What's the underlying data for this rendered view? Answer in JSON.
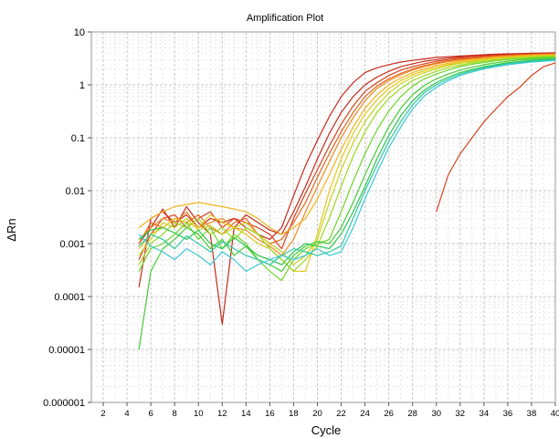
{
  "chart_data": {
    "type": "line",
    "title": "Amplification Plot",
    "xlabel": "Cycle",
    "ylabel": "ΔRn",
    "xlim": [
      1,
      40
    ],
    "ylim": [
      1e-06,
      10
    ],
    "yscale": "log",
    "grid": true,
    "legend": "none",
    "xticks": [
      2,
      4,
      6,
      8,
      10,
      12,
      14,
      16,
      18,
      20,
      22,
      24,
      26,
      28,
      30,
      32,
      34,
      36,
      38,
      40
    ],
    "yticks": [
      {
        "value": 10,
        "label": "10"
      },
      {
        "value": 1,
        "label": "1"
      },
      {
        "value": 0.1,
        "label": "0.1"
      },
      {
        "value": 0.01,
        "label": "0.01"
      },
      {
        "value": 0.001,
        "label": "0.001"
      },
      {
        "value": 0.0001,
        "label": "0.0001"
      },
      {
        "value": 1e-05,
        "label": "0.00001"
      },
      {
        "value": 1e-06,
        "label": "0.000001"
      }
    ],
    "colors": [
      "#c62a1a",
      "#d8401c",
      "#e8641e",
      "#f08a20",
      "#f2b41e",
      "#e6c81c",
      "#c8d41c",
      "#9ed81e",
      "#6fd628",
      "#44cc36",
      "#2cc64c",
      "#30c8a4",
      "#3cc8d8"
    ],
    "series": [
      {
        "color": "#c62a1a",
        "x": [
          5,
          6,
          7,
          8,
          9,
          10,
          11,
          12,
          13,
          14,
          15,
          16,
          17,
          18,
          19,
          20,
          21,
          22,
          23,
          24,
          25,
          26,
          27,
          28,
          29,
          30,
          31,
          32,
          33,
          34,
          35,
          36,
          37,
          38,
          39,
          40
        ],
        "y": [
          0.00015,
          0.003,
          0.004,
          0.0025,
          0.0035,
          0.002,
          0.003,
          0.0025,
          0.003,
          0.002,
          0.0015,
          0.0012,
          0.002,
          0.008,
          0.03,
          0.09,
          0.25,
          0.6,
          1.1,
          1.7,
          2.1,
          2.4,
          2.7,
          2.9,
          3.1,
          3.3,
          3.4,
          3.5,
          3.6,
          3.7,
          3.8,
          3.85,
          3.9,
          3.95,
          4.0,
          4.05
        ]
      },
      {
        "color": "#c62a1a",
        "x": [
          5,
          6,
          7,
          8,
          9,
          10,
          11,
          12,
          13,
          14,
          15,
          16,
          17,
          18,
          19,
          20,
          21,
          22,
          23,
          24,
          25,
          26,
          27,
          28,
          29,
          30,
          31,
          32,
          33,
          34,
          35,
          36,
          37,
          38,
          39,
          40
        ],
        "y": [
          0.001,
          0.002,
          0.0045,
          0.002,
          0.005,
          0.0025,
          0.0015,
          3e-05,
          0.002,
          0.0035,
          0.0025,
          0.0018,
          0.0015,
          0.004,
          0.012,
          0.04,
          0.12,
          0.3,
          0.6,
          1.0,
          1.4,
          1.8,
          2.2,
          2.5,
          2.8,
          3.0,
          3.2,
          3.35,
          3.5,
          3.6,
          3.7,
          3.8,
          3.85,
          3.9,
          3.95,
          4.0
        ]
      },
      {
        "color": "#d8401c",
        "x": [
          5,
          6,
          7,
          8,
          9,
          10,
          11,
          12,
          13,
          14,
          15,
          16,
          17,
          18,
          19,
          20,
          21,
          22,
          23,
          24,
          25,
          26,
          27,
          28,
          29,
          30,
          31,
          32,
          33,
          34,
          35,
          36,
          37,
          38,
          39,
          40
        ],
        "y": [
          0.0005,
          0.0015,
          0.003,
          0.0035,
          0.002,
          0.003,
          0.004,
          0.002,
          0.003,
          0.0025,
          0.002,
          0.0015,
          0.0008,
          0.003,
          0.009,
          0.025,
          0.07,
          0.18,
          0.4,
          0.75,
          1.1,
          1.5,
          1.9,
          2.2,
          2.5,
          2.8,
          3.0,
          3.2,
          3.3,
          3.45,
          3.55,
          3.65,
          3.75,
          3.8,
          3.85,
          3.9
        ]
      },
      {
        "color": "#e8641e",
        "x": [
          5,
          6,
          7,
          8,
          9,
          10,
          11,
          12,
          13,
          14,
          15,
          16,
          17,
          18,
          19,
          20,
          21,
          22,
          23,
          24,
          25,
          26,
          27,
          28,
          29,
          30,
          31,
          32,
          33,
          34,
          35,
          36,
          37,
          38,
          39,
          40
        ],
        "y": [
          0.001,
          0.0025,
          0.002,
          0.003,
          0.0025,
          0.0035,
          0.002,
          0.0015,
          0.0025,
          0.003,
          0.0015,
          0.001,
          0.0012,
          0.0025,
          0.006,
          0.018,
          0.05,
          0.13,
          0.3,
          0.6,
          0.95,
          1.3,
          1.65,
          2.0,
          2.3,
          2.6,
          2.85,
          3.05,
          3.2,
          3.35,
          3.5,
          3.6,
          3.7,
          3.75,
          3.8,
          3.85
        ]
      },
      {
        "color": "#f08a20",
        "x": [
          5,
          6,
          7,
          8,
          9,
          10,
          11,
          12,
          13,
          14,
          15,
          16,
          17,
          18,
          19,
          20,
          21,
          22,
          23,
          24,
          25,
          26,
          27,
          28,
          29,
          30,
          31,
          32,
          33,
          34,
          35,
          36,
          37,
          38,
          39,
          40
        ],
        "y": [
          0.0012,
          0.002,
          0.003,
          0.0025,
          0.004,
          0.002,
          0.0025,
          0.003,
          0.002,
          0.0018,
          0.0012,
          0.0009,
          0.0006,
          0.0012,
          0.004,
          0.012,
          0.035,
          0.1,
          0.24,
          0.5,
          0.85,
          1.2,
          1.55,
          1.9,
          2.2,
          2.5,
          2.75,
          2.95,
          3.1,
          3.25,
          3.4,
          3.5,
          3.6,
          3.7,
          3.75,
          3.8
        ]
      },
      {
        "color": "#f2b41e",
        "x": [
          5,
          6,
          7,
          8,
          9,
          10,
          11,
          12,
          13,
          14,
          15,
          16,
          17,
          18,
          19,
          20,
          21,
          22,
          23,
          24,
          25,
          26,
          27,
          28,
          29,
          30,
          31,
          32,
          33,
          34,
          35,
          36,
          37,
          38,
          39,
          40
        ],
        "y": [
          0.002,
          0.003,
          0.004,
          0.005,
          0.0055,
          0.006,
          0.0055,
          0.005,
          0.0045,
          0.004,
          0.003,
          0.002,
          0.0015,
          0.002,
          0.003,
          0.007,
          0.02,
          0.06,
          0.16,
          0.36,
          0.65,
          1.0,
          1.35,
          1.7,
          2.0,
          2.3,
          2.55,
          2.8,
          3.0,
          3.15,
          3.3,
          3.4,
          3.5,
          3.6,
          3.65,
          3.7
        ]
      },
      {
        "color": "#e6c81c",
        "x": [
          5,
          6,
          7,
          8,
          9,
          10,
          11,
          12,
          13,
          14,
          15,
          16,
          17,
          18,
          19,
          20,
          21,
          22,
          23,
          24,
          25,
          26,
          27,
          28,
          29,
          30,
          31,
          32,
          33,
          34,
          35,
          36,
          37,
          38,
          39,
          40
        ],
        "y": [
          0.0008,
          0.0015,
          0.002,
          0.003,
          0.0025,
          0.002,
          0.0035,
          0.0025,
          0.002,
          0.0015,
          0.001,
          0.0008,
          0.0005,
          0.0003,
          0.0003,
          0.0015,
          0.01,
          0.04,
          0.12,
          0.28,
          0.52,
          0.85,
          1.2,
          1.55,
          1.85,
          2.15,
          2.4,
          2.65,
          2.85,
          3.0,
          3.15,
          3.3,
          3.4,
          3.5,
          3.55,
          3.6
        ]
      },
      {
        "color": "#c8d41c",
        "x": [
          5,
          6,
          7,
          8,
          9,
          10,
          11,
          12,
          13,
          14,
          15,
          16,
          17,
          18,
          19,
          20,
          21,
          22,
          23,
          24,
          25,
          26,
          27,
          28,
          29,
          30,
          31,
          32,
          33,
          34,
          35,
          36,
          37,
          38,
          39,
          40
        ],
        "y": [
          0.0006,
          0.0012,
          0.0025,
          0.002,
          0.003,
          0.0018,
          0.0022,
          0.0015,
          0.002,
          0.0025,
          0.0015,
          0.001,
          0.0007,
          0.0004,
          0.0006,
          0.0012,
          0.006,
          0.025,
          0.08,
          0.2,
          0.4,
          0.7,
          1.05,
          1.4,
          1.7,
          2.0,
          2.3,
          2.55,
          2.75,
          2.95,
          3.1,
          3.25,
          3.35,
          3.45,
          3.5,
          3.55
        ]
      },
      {
        "color": "#9ed81e",
        "x": [
          5,
          6,
          7,
          8,
          9,
          10,
          11,
          12,
          13,
          14,
          15,
          16,
          17,
          18,
          19,
          20,
          21,
          22,
          23,
          24,
          25,
          26,
          27,
          28,
          29,
          30,
          31,
          32,
          33,
          34,
          35,
          36,
          37,
          38,
          39,
          40
        ],
        "y": [
          0.0004,
          0.001,
          0.0015,
          0.0025,
          0.002,
          0.003,
          0.0015,
          0.002,
          0.0012,
          0.002,
          0.0015,
          0.0008,
          0.0005,
          0.0003,
          0.0005,
          0.0009,
          0.003,
          0.012,
          0.045,
          0.13,
          0.3,
          0.55,
          0.85,
          1.2,
          1.5,
          1.8,
          2.1,
          2.35,
          2.6,
          2.8,
          2.95,
          3.1,
          3.2,
          3.3,
          3.4,
          3.45
        ]
      },
      {
        "color": "#6fd628",
        "x": [
          5,
          6,
          7,
          8,
          9,
          10,
          11,
          12,
          13,
          14,
          15,
          16,
          17,
          18,
          19,
          20,
          21,
          22,
          23,
          24,
          25,
          26,
          27,
          28,
          29,
          30,
          31,
          32,
          33,
          34,
          35,
          36,
          37,
          38,
          39,
          40
        ],
        "y": [
          0.0003,
          0.0008,
          0.001,
          0.0015,
          0.0025,
          0.0012,
          0.002,
          0.0008,
          0.0015,
          0.001,
          0.0005,
          0.0003,
          0.0002,
          0.0005,
          0.0008,
          0.001,
          0.0012,
          0.004,
          0.015,
          0.05,
          0.14,
          0.32,
          0.6,
          0.95,
          1.3,
          1.6,
          1.9,
          2.2,
          2.45,
          2.65,
          2.85,
          3.0,
          3.1,
          3.2,
          3.3,
          3.35
        ]
      },
      {
        "color": "#44cc36",
        "x": [
          5,
          6,
          7,
          8,
          9,
          10,
          11,
          12,
          13,
          14,
          15,
          16,
          17,
          18,
          19,
          20,
          21,
          22,
          23,
          24,
          25,
          26,
          27,
          28,
          29,
          30,
          31,
          32,
          33,
          34,
          35,
          36,
          37,
          38,
          39,
          40
        ],
        "y": [
          1e-05,
          0.0003,
          0.0008,
          0.0012,
          0.002,
          0.0015,
          0.0008,
          0.0012,
          0.0006,
          0.0009,
          0.0005,
          0.0004,
          0.0003,
          0.0006,
          0.0009,
          0.0011,
          0.001,
          0.002,
          0.006,
          0.02,
          0.06,
          0.16,
          0.36,
          0.65,
          0.98,
          1.3,
          1.6,
          1.9,
          2.15,
          2.4,
          2.6,
          2.8,
          2.95,
          3.05,
          3.15,
          3.2
        ]
      },
      {
        "color": "#2cc64c",
        "x": [
          5,
          6,
          7,
          8,
          9,
          10,
          11,
          12,
          13,
          14,
          15,
          16,
          17,
          18,
          19,
          20,
          21,
          22,
          23,
          24,
          25,
          26,
          27,
          28,
          29,
          30,
          31,
          32,
          33,
          34,
          35,
          36,
          37,
          38,
          39,
          40
        ],
        "y": [
          0.0012,
          0.0018,
          0.002,
          0.0016,
          0.0012,
          0.0018,
          0.001,
          0.0008,
          0.0013,
          0.0009,
          0.0006,
          0.0005,
          0.0004,
          0.0007,
          0.001,
          0.0009,
          0.0008,
          0.0015,
          0.004,
          0.012,
          0.04,
          0.11,
          0.26,
          0.5,
          0.8,
          1.1,
          1.4,
          1.7,
          1.95,
          2.2,
          2.4,
          2.6,
          2.75,
          2.9,
          3.0,
          3.1
        ]
      },
      {
        "color": "#30c8a4",
        "x": [
          5,
          6,
          7,
          8,
          9,
          10,
          11,
          12,
          13,
          14,
          15,
          16,
          17,
          18,
          19,
          20,
          21,
          22,
          23,
          24,
          25,
          26,
          27,
          28,
          29,
          30,
          31,
          32,
          33,
          34,
          35,
          36,
          37,
          38,
          39,
          40
        ],
        "y": [
          0.0009,
          0.0015,
          0.0012,
          0.0008,
          0.0014,
          0.001,
          0.0007,
          0.0011,
          0.0008,
          0.0006,
          0.0005,
          0.0004,
          0.0006,
          0.0008,
          0.0007,
          0.0006,
          0.0007,
          0.0009,
          0.003,
          0.01,
          0.03,
          0.085,
          0.2,
          0.42,
          0.72,
          1.0,
          1.3,
          1.6,
          1.85,
          2.1,
          2.3,
          2.5,
          2.65,
          2.8,
          2.9,
          3.0
        ]
      },
      {
        "color": "#3cc8d8",
        "x": [
          5,
          6,
          7,
          8,
          9,
          10,
          11,
          12,
          13,
          14,
          15,
          16,
          17,
          18,
          19,
          20,
          21,
          22,
          23,
          24,
          25,
          26,
          27,
          28,
          29,
          30,
          31,
          32,
          33,
          34,
          35,
          36,
          37,
          38,
          39,
          40
        ],
        "y": [
          0.0015,
          0.0009,
          0.0007,
          0.0005,
          0.0008,
          0.0006,
          0.0004,
          0.0007,
          0.0005,
          0.0003,
          0.0004,
          0.0005,
          0.0006,
          0.0005,
          0.0006,
          0.0008,
          0.0006,
          0.0007,
          0.002,
          0.007,
          0.022,
          0.065,
          0.16,
          0.35,
          0.62,
          0.9,
          1.2,
          1.5,
          1.75,
          2.0,
          2.2,
          2.4,
          2.55,
          2.7,
          2.8,
          2.9
        ]
      },
      {
        "color": "#d8401c",
        "x": [
          30,
          31,
          32,
          33,
          34,
          35,
          36,
          37,
          38,
          39,
          40
        ],
        "y": [
          0.004,
          0.02,
          0.05,
          0.1,
          0.2,
          0.35,
          0.6,
          0.9,
          1.5,
          2.2,
          2.6
        ]
      }
    ]
  }
}
